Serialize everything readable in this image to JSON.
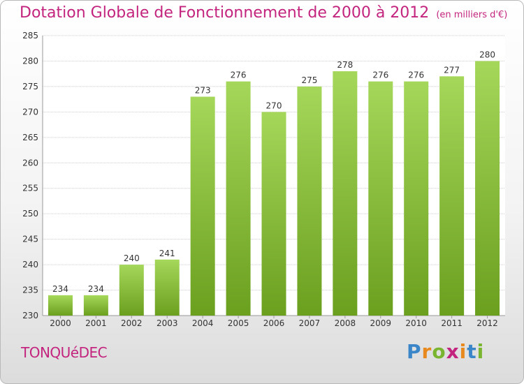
{
  "title": "Dotation Globale de Fonctionnement de 2000 à 2012",
  "subtitle": "(en milliers d'€)",
  "place": "TONQUéDEC",
  "logo": {
    "letters": [
      {
        "char": "P",
        "color": "#3a86c8"
      },
      {
        "char": "r",
        "color": "#e8891d"
      },
      {
        "char": "o",
        "color": "#7ab530"
      },
      {
        "char": "x",
        "color": "#c3247e"
      },
      {
        "char": "i",
        "color": "#e8891d"
      },
      {
        "char": "t",
        "color": "#3a86c8"
      },
      {
        "char": "i",
        "color": "#7ab530"
      }
    ]
  },
  "colors": {
    "bar_top": "#a5d75a",
    "bar_bottom": "#6b9f1e",
    "text": "#333333",
    "grid": "#cccccc"
  },
  "chart_data": {
    "type": "bar",
    "categories": [
      "2000",
      "2001",
      "2002",
      "2003",
      "2004",
      "2005",
      "2006",
      "2007",
      "2008",
      "2009",
      "2010",
      "2011",
      "2012"
    ],
    "values": [
      234,
      234,
      240,
      241,
      273,
      276,
      270,
      275,
      278,
      276,
      276,
      277,
      280
    ],
    "ylim": [
      230,
      285
    ],
    "yticks": [
      230,
      235,
      240,
      245,
      250,
      255,
      260,
      265,
      270,
      275,
      280,
      285
    ],
    "grid": true
  }
}
